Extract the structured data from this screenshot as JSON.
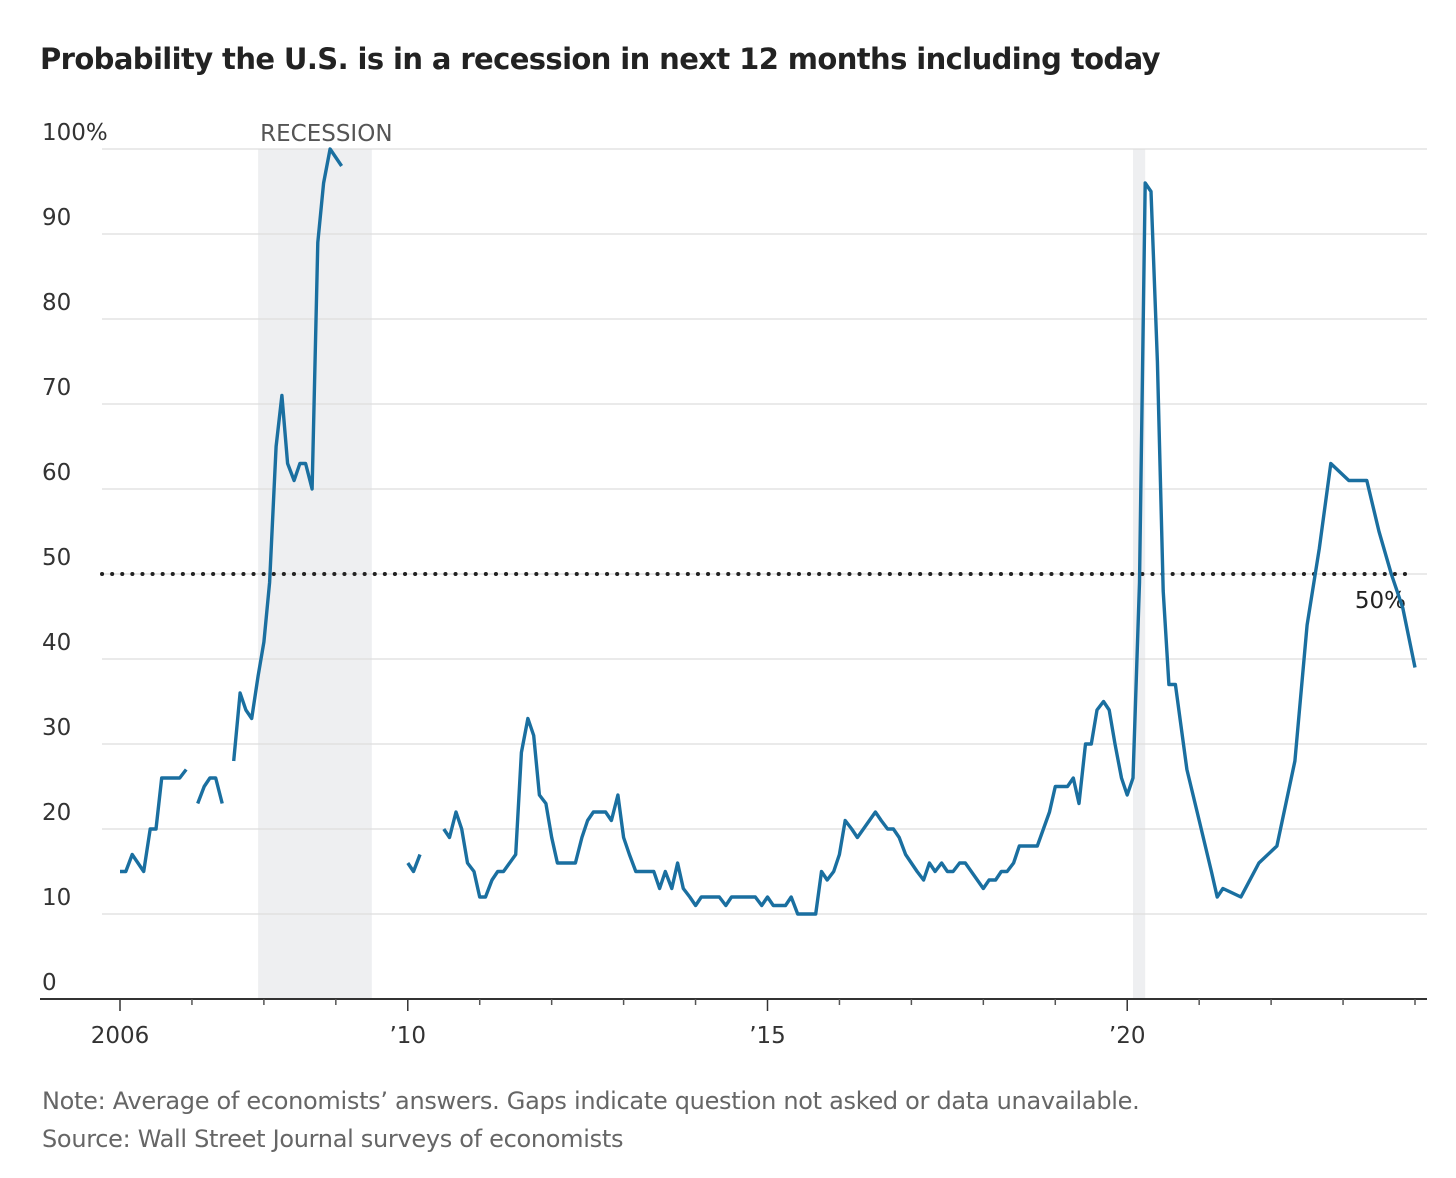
{
  "chart_data": {
    "type": "line",
    "title": "Probability the U.S. is in a recession in next 12 months including today",
    "xlabel": "",
    "ylabel": "",
    "ylim": [
      0,
      100
    ],
    "xlim": [
      2005.833,
      2024.833
    ],
    "grid": true,
    "y_ticks": [
      {
        "value": 0,
        "label": "0"
      },
      {
        "value": 10,
        "label": "10"
      },
      {
        "value": 20,
        "label": "20"
      },
      {
        "value": 30,
        "label": "30"
      },
      {
        "value": 40,
        "label": "40"
      },
      {
        "value": 50,
        "label": "50"
      },
      {
        "value": 60,
        "label": "60"
      },
      {
        "value": 70,
        "label": "70"
      },
      {
        "value": 80,
        "label": "80"
      },
      {
        "value": 90,
        "label": "90"
      },
      {
        "value": 100,
        "label": "100%"
      }
    ],
    "x_ticks": [
      {
        "value": 2006,
        "label": "2006"
      },
      {
        "value": 2010,
        "label": "’10"
      },
      {
        "value": 2015,
        "label": "’15"
      },
      {
        "value": 2020,
        "label": "’20"
      }
    ],
    "x_minor_ticks": [
      2007,
      2008,
      2009,
      2011,
      2012,
      2013,
      2014,
      2016,
      2017,
      2018,
      2019,
      2021,
      2022,
      2023,
      2024
    ],
    "recessions": [
      {
        "start": 2007.92,
        "end": 2009.5,
        "label": "RECESSION"
      },
      {
        "start": 2020.08,
        "end": 2020.25,
        "label": ""
      }
    ],
    "reference_line": {
      "value": 50,
      "label": "50%"
    },
    "line_color": "#1a6fa0",
    "recession_color": "#eeeff1",
    "series": [
      {
        "name": "Probability of recession",
        "segments": [
          [
            [
              2006.0,
              15
            ],
            [
              2006.08,
              15
            ],
            [
              2006.17,
              17
            ],
            [
              2006.33,
              15
            ],
            [
              2006.42,
              20
            ],
            [
              2006.5,
              20
            ],
            [
              2006.58,
              26
            ],
            [
              2006.83,
              26
            ],
            [
              2006.92,
              27
            ]
          ],
          [
            [
              2007.08,
              23
            ],
            [
              2007.17,
              25
            ],
            [
              2007.25,
              26
            ],
            [
              2007.33,
              26
            ],
            [
              2007.42,
              23
            ]
          ],
          [
            [
              2007.58,
              28
            ],
            [
              2007.67,
              36
            ],
            [
              2007.75,
              34
            ],
            [
              2007.83,
              33
            ],
            [
              2007.92,
              38
            ],
            [
              2008.0,
              42
            ],
            [
              2008.08,
              49
            ],
            [
              2008.17,
              65
            ],
            [
              2008.25,
              71
            ],
            [
              2008.33,
              63
            ],
            [
              2008.42,
              61
            ],
            [
              2008.5,
              63
            ],
            [
              2008.58,
              63
            ],
            [
              2008.67,
              60
            ],
            [
              2008.75,
              89
            ],
            [
              2008.83,
              96
            ],
            [
              2008.92,
              100
            ],
            [
              2009.08,
              98
            ]
          ],
          [
            [
              2010.0,
              16
            ],
            [
              2010.08,
              15
            ],
            [
              2010.17,
              17
            ]
          ],
          [
            [
              2010.5,
              20
            ],
            [
              2010.58,
              19
            ],
            [
              2010.67,
              22
            ],
            [
              2010.75,
              20
            ],
            [
              2010.83,
              16
            ],
            [
              2010.92,
              15
            ],
            [
              2011.0,
              12
            ],
            [
              2011.08,
              12
            ],
            [
              2011.17,
              14
            ],
            [
              2011.25,
              15
            ],
            [
              2011.33,
              15
            ],
            [
              2011.5,
              17
            ],
            [
              2011.58,
              29
            ],
            [
              2011.67,
              33
            ],
            [
              2011.75,
              31
            ],
            [
              2011.83,
              24
            ],
            [
              2011.92,
              23
            ],
            [
              2012.0,
              19
            ],
            [
              2012.08,
              16
            ],
            [
              2012.33,
              16
            ],
            [
              2012.42,
              19
            ],
            [
              2012.5,
              21
            ],
            [
              2012.58,
              22
            ],
            [
              2012.75,
              22
            ],
            [
              2012.83,
              21
            ],
            [
              2012.92,
              24
            ],
            [
              2013.0,
              19
            ],
            [
              2013.08,
              17
            ],
            [
              2013.17,
              15
            ],
            [
              2013.42,
              15
            ],
            [
              2013.5,
              13
            ],
            [
              2013.58,
              15
            ],
            [
              2013.67,
              13
            ],
            [
              2013.75,
              16
            ],
            [
              2013.83,
              13
            ],
            [
              2013.92,
              12
            ],
            [
              2014.0,
              11
            ],
            [
              2014.08,
              12
            ],
            [
              2014.33,
              12
            ],
            [
              2014.42,
              11
            ],
            [
              2014.5,
              12
            ],
            [
              2014.83,
              12
            ],
            [
              2014.92,
              11
            ],
            [
              2015.0,
              12
            ],
            [
              2015.08,
              11
            ],
            [
              2015.25,
              11
            ],
            [
              2015.33,
              12
            ],
            [
              2015.42,
              10
            ],
            [
              2015.67,
              10
            ],
            [
              2015.75,
              15
            ],
            [
              2015.83,
              14
            ],
            [
              2015.92,
              15
            ],
            [
              2016.0,
              17
            ],
            [
              2016.08,
              21
            ],
            [
              2016.17,
              20
            ],
            [
              2016.25,
              19
            ],
            [
              2016.5,
              22
            ],
            [
              2016.58,
              21
            ],
            [
              2016.67,
              20
            ],
            [
              2016.75,
              20
            ],
            [
              2016.83,
              19
            ],
            [
              2016.92,
              17
            ],
            [
              2017.08,
              15
            ],
            [
              2017.17,
              14
            ],
            [
              2017.25,
              16
            ],
            [
              2017.33,
              15
            ],
            [
              2017.42,
              16
            ],
            [
              2017.5,
              15
            ],
            [
              2017.58,
              15
            ],
            [
              2017.67,
              16
            ],
            [
              2017.75,
              16
            ],
            [
              2018.0,
              13
            ],
            [
              2018.08,
              14
            ],
            [
              2018.17,
              14
            ],
            [
              2018.25,
              15
            ],
            [
              2018.33,
              15
            ],
            [
              2018.42,
              16
            ],
            [
              2018.5,
              18
            ],
            [
              2018.75,
              18
            ],
            [
              2018.92,
              22
            ],
            [
              2019.0,
              25
            ],
            [
              2019.17,
              25
            ],
            [
              2019.25,
              26
            ],
            [
              2019.33,
              23
            ],
            [
              2019.42,
              30
            ],
            [
              2019.5,
              30
            ],
            [
              2019.58,
              34
            ],
            [
              2019.67,
              35
            ],
            [
              2019.75,
              34
            ],
            [
              2019.83,
              30
            ],
            [
              2019.92,
              26
            ],
            [
              2020.0,
              24
            ],
            [
              2020.08,
              26
            ],
            [
              2020.17,
              49
            ],
            [
              2020.25,
              96
            ],
            [
              2020.33,
              95
            ],
            [
              2020.42,
              75
            ],
            [
              2020.5,
              48
            ],
            [
              2020.58,
              37
            ],
            [
              2020.67,
              37
            ],
            [
              2020.83,
              27
            ],
            [
              2021.0,
              21
            ],
            [
              2021.17,
              15
            ],
            [
              2021.25,
              12
            ],
            [
              2021.33,
              13
            ],
            [
              2021.58,
              12
            ],
            [
              2021.83,
              16
            ],
            [
              2022.08,
              18
            ],
            [
              2022.33,
              28
            ],
            [
              2022.5,
              44
            ],
            [
              2022.67,
              53
            ],
            [
              2022.83,
              63
            ],
            [
              2023.08,
              61
            ],
            [
              2023.33,
              61
            ],
            [
              2023.5,
              55
            ],
            [
              2023.67,
              50
            ],
            [
              2023.83,
              46
            ],
            [
              2024.0,
              39
            ]
          ]
        ]
      }
    ]
  },
  "footer": {
    "note": "Note: Average of economists’ answers. Gaps indicate question not asked or data unavailable.",
    "source": "Source: Wall Street Journal surveys of economists"
  }
}
